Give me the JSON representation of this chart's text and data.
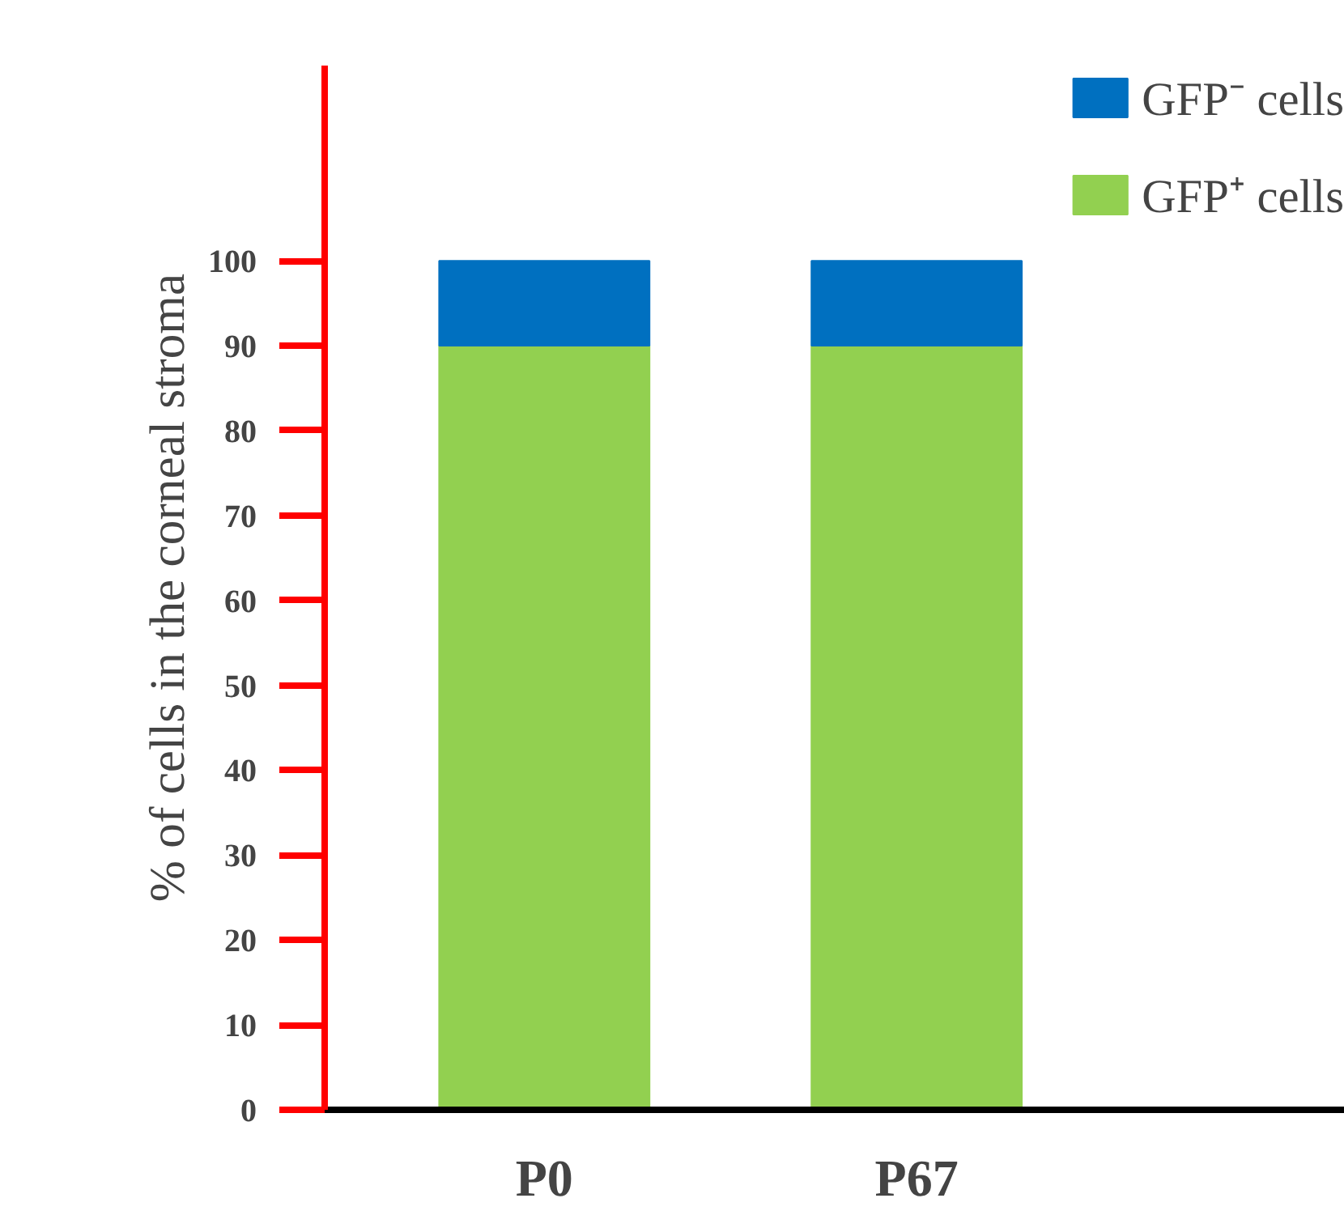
{
  "chart_data": {
    "type": "bar",
    "stacked": true,
    "ylabel": "% of cells in the corneal stroma",
    "categories": [
      "P0",
      "P67"
    ],
    "series": [
      {
        "name": "GFP⁺ cells",
        "color": "#92d050",
        "values": [
          90,
          90
        ]
      },
      {
        "name": "GFP⁻ cells",
        "color": "#0070c0",
        "values": [
          10,
          10
        ]
      }
    ],
    "ylim": [
      0,
      123
    ],
    "yticks": [
      0,
      10,
      20,
      30,
      40,
      50,
      60,
      70,
      80,
      90,
      100
    ],
    "grid": false,
    "legend": "top right"
  }
}
